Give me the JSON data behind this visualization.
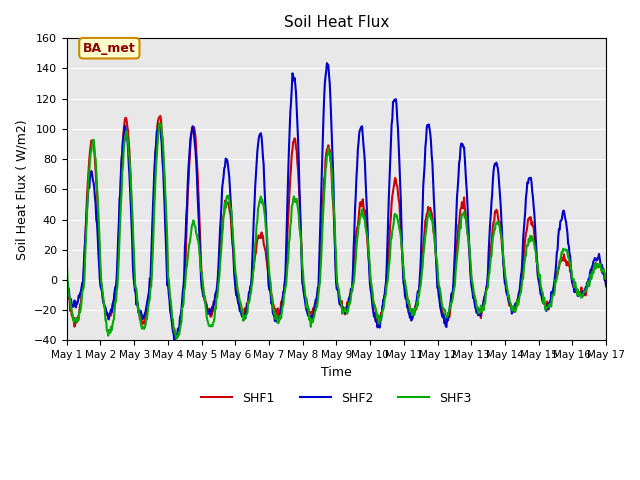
{
  "title": "Soil Heat Flux",
  "xlabel": "Time",
  "ylabel": "Soil Heat Flux ( W/m2)",
  "ylim": [
    -40,
    160
  ],
  "yticks": [
    -40,
    -20,
    0,
    20,
    40,
    60,
    80,
    100,
    120,
    140,
    160
  ],
  "colors": {
    "SHF1": "#cc0000",
    "SHF2": "#0000cc",
    "SHF3": "#00aa00"
  },
  "legend_label": "BA_met",
  "legend_bg": "#ffffcc",
  "legend_border": "#cc8800",
  "bg_color": "#e8e8e8",
  "line_width": 1.5,
  "n_days": 16,
  "start_day": 1,
  "shf1_amps": [
    93,
    107,
    109,
    102,
    52,
    30,
    93,
    88,
    52,
    65,
    48,
    50,
    45,
    42,
    15,
    10
  ],
  "shf2_amps": [
    70,
    100,
    104,
    100,
    79,
    97,
    135,
    143,
    102,
    121,
    104,
    91,
    78,
    68,
    45,
    15
  ],
  "shf3_amps": [
    92,
    97,
    103,
    37,
    55,
    54,
    55,
    85,
    45,
    43,
    44,
    44,
    38,
    28,
    20,
    10
  ],
  "shf1_night": [
    -28,
    -25,
    -28,
    -38,
    -22,
    -22,
    -22,
    -22,
    -20,
    -26,
    -22,
    -26,
    -22,
    -20,
    -18,
    -10
  ],
  "shf2_night": [
    -17,
    -23,
    -25,
    -38,
    -22,
    -24,
    -27,
    -27,
    -22,
    -30,
    -24,
    -28,
    -23,
    -20,
    -18,
    -10
  ],
  "shf3_night": [
    -28,
    -35,
    -32,
    -38,
    -32,
    -24,
    -27,
    -27,
    -22,
    -27,
    -22,
    -24,
    -22,
    -20,
    -18,
    -10
  ]
}
